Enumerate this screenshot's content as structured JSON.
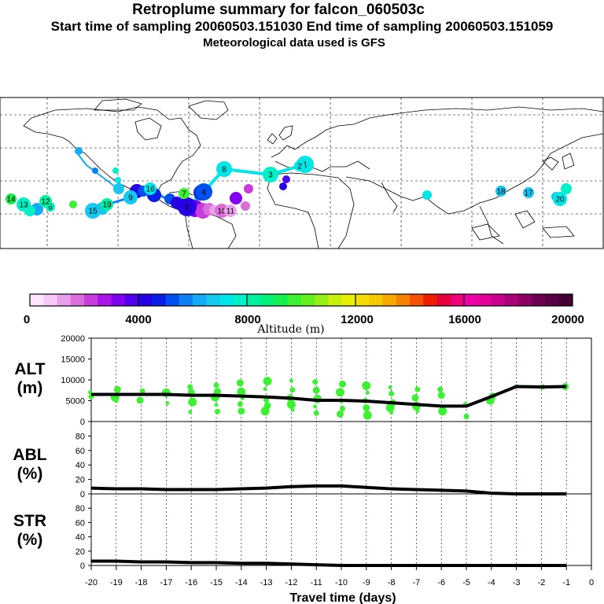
{
  "header": {
    "title": "Retroplume summary for falcon_060503c",
    "sampling": "Start time of sampling 20060503.151030     End time of sampling 20060503.151059",
    "met": "Meteorological data used is GFS"
  },
  "colorbar": {
    "label": "Altitude (m)",
    "ticks": [
      "0",
      "4000",
      "8000",
      "12000",
      "16000",
      "20000"
    ],
    "colors": [
      "#ffe6ff",
      "#f5c8f5",
      "#eaa0ea",
      "#dc6edc",
      "#c83cdc",
      "#aa14e6",
      "#8200f0",
      "#5000f0",
      "#2800e6",
      "#0a1ee6",
      "#0050f0",
      "#0a82f5",
      "#14aaf5",
      "#14c8f0",
      "#00e6e6",
      "#00f0c8",
      "#00f0a0",
      "#00f078",
      "#14f050",
      "#3cf032",
      "#64f01e",
      "#96f014",
      "#c8f00a",
      "#e6f000",
      "#f5dc00",
      "#f5c800",
      "#f5aa00",
      "#f58200",
      "#f55000",
      "#f01e00",
      "#e6003c",
      "#f0007a",
      "#f000aa",
      "#e6009b",
      "#c8008c",
      "#aa0078",
      "#8c0064",
      "#6e0050",
      "#5a0046",
      "#460032"
    ]
  },
  "map": {
    "labels": [
      {
        "t": "1",
        "c": "#00e6e6"
      },
      {
        "t": "2",
        "c": "#00e6e6"
      },
      {
        "t": "3",
        "c": "#00f0c8"
      },
      {
        "t": "4",
        "c": "#0050f0"
      },
      {
        "t": "5",
        "c": "#2800e6"
      },
      {
        "t": "6",
        "c": "#00f0c8"
      },
      {
        "t": "7",
        "c": "#3cf032"
      },
      {
        "t": "8",
        "c": "#00e6e6"
      },
      {
        "t": "9",
        "c": "#14c8f0"
      },
      {
        "t": "10",
        "c": "#dc6edc"
      },
      {
        "t": "11",
        "c": "#eaa0ea"
      },
      {
        "t": "12",
        "c": "#00f0a0"
      },
      {
        "t": "13",
        "c": "#00f0c8"
      },
      {
        "t": "14",
        "c": "#14f050"
      },
      {
        "t": "15",
        "c": "#14c8f0"
      },
      {
        "t": "16",
        "c": "#00e6e6"
      },
      {
        "t": "17",
        "c": "#14c8f0"
      },
      {
        "t": "18",
        "c": "#14c8f0"
      },
      {
        "t": "19",
        "c": "#00f0a0"
      },
      {
        "t": "20",
        "c": "#00e6e6"
      }
    ]
  },
  "panels": {
    "alt": "ALT",
    "alt_unit": "(m)",
    "abl": "ABL",
    "abl_unit": "(%)",
    "str": "STR",
    "str_unit": "(%)"
  },
  "xaxis_label": "Travel time (days)",
  "chart_data": [
    {
      "type": "line",
      "title": "ALT",
      "xlabel": "Travel time (days)",
      "ylabel": "(m)",
      "xlim": [
        -20,
        0
      ],
      "ylim": [
        0,
        20000
      ],
      "x_ticks": [
        "-20",
        "-19",
        "-18",
        "-17",
        "-16",
        "-15",
        "-14",
        "-13",
        "-12",
        "-11",
        "-10",
        "-9",
        "-8",
        "-7",
        "-6",
        "-5",
        "-4",
        "-3",
        "-2",
        "-1",
        "0"
      ],
      "y_ticks": [
        "20000",
        "15000",
        "10000",
        "5000",
        "0"
      ],
      "x": [
        -20,
        -19,
        -18,
        -17,
        -16,
        -15,
        -14,
        -13,
        -12,
        -11,
        -10,
        -9,
        -8,
        -7,
        -6,
        -5,
        -4,
        -3,
        -2,
        -1
      ],
      "values": [
        6500,
        6500,
        6500,
        6500,
        6300,
        6300,
        6100,
        5900,
        5600,
        5100,
        5100,
        4900,
        4500,
        4100,
        3700,
        3700,
        6000,
        8400,
        8300,
        8400
      ],
      "scatter": [
        {
          "x": -20,
          "y": 7000
        },
        {
          "x": -20,
          "y": 6000
        },
        {
          "x": -19,
          "y": 7700
        },
        {
          "x": -19,
          "y": 5800
        },
        {
          "x": -19,
          "y": 4900
        },
        {
          "x": -18,
          "y": 7300
        },
        {
          "x": -18,
          "y": 5100
        },
        {
          "x": -17,
          "y": 6900
        },
        {
          "x": -17,
          "y": 4400
        },
        {
          "x": -16,
          "y": 8300
        },
        {
          "x": -16,
          "y": 7000
        },
        {
          "x": -16,
          "y": 4700
        },
        {
          "x": -16,
          "y": 2300
        },
        {
          "x": -15,
          "y": 8700
        },
        {
          "x": -15,
          "y": 7200
        },
        {
          "x": -15,
          "y": 5900
        },
        {
          "x": -15,
          "y": 4000
        },
        {
          "x": -15,
          "y": 2400
        },
        {
          "x": -14,
          "y": 9300
        },
        {
          "x": -14,
          "y": 7100
        },
        {
          "x": -14,
          "y": 5600
        },
        {
          "x": -14,
          "y": 4200
        },
        {
          "x": -14,
          "y": 2500
        },
        {
          "x": -13,
          "y": 9700
        },
        {
          "x": -13,
          "y": 7800
        },
        {
          "x": -13,
          "y": 5200
        },
        {
          "x": -13,
          "y": 3800
        },
        {
          "x": -13,
          "y": 2500
        },
        {
          "x": -12,
          "y": 9800
        },
        {
          "x": -12,
          "y": 7600
        },
        {
          "x": -12,
          "y": 5700
        },
        {
          "x": -12,
          "y": 4100
        },
        {
          "x": -12,
          "y": 2800
        },
        {
          "x": -11,
          "y": 9500
        },
        {
          "x": -11,
          "y": 7500
        },
        {
          "x": -11,
          "y": 5400
        },
        {
          "x": -11,
          "y": 3600
        },
        {
          "x": -11,
          "y": 2000
        },
        {
          "x": -10,
          "y": 9000
        },
        {
          "x": -10,
          "y": 7000
        },
        {
          "x": -10,
          "y": 4800
        },
        {
          "x": -10,
          "y": 3100
        },
        {
          "x": -10,
          "y": 1800
        },
        {
          "x": -9,
          "y": 8600
        },
        {
          "x": -9,
          "y": 6900
        },
        {
          "x": -9,
          "y": 5000
        },
        {
          "x": -9,
          "y": 3300
        },
        {
          "x": -9,
          "y": 1500
        },
        {
          "x": -8,
          "y": 8200
        },
        {
          "x": -8,
          "y": 6700
        },
        {
          "x": -8,
          "y": 4500
        },
        {
          "x": -8,
          "y": 3300
        },
        {
          "x": -8,
          "y": 2100
        },
        {
          "x": -7,
          "y": 7700
        },
        {
          "x": -7,
          "y": 5700
        },
        {
          "x": -7,
          "y": 3700
        },
        {
          "x": -7,
          "y": 2500
        },
        {
          "x": -6,
          "y": 7700
        },
        {
          "x": -6,
          "y": 6300
        },
        {
          "x": -6,
          "y": 2500
        },
        {
          "x": -5,
          "y": 4200
        },
        {
          "x": -5,
          "y": 1200
        },
        {
          "x": -4,
          "y": 6100
        },
        {
          "x": -4,
          "y": 5100
        },
        {
          "x": -3,
          "y": 8500
        },
        {
          "x": -2,
          "y": 8300
        },
        {
          "x": -1,
          "y": 8400
        }
      ]
    },
    {
      "type": "line",
      "title": "ABL",
      "ylabel": "(%)",
      "xlim": [
        -20,
        0
      ],
      "ylim": [
        0,
        100
      ],
      "y_ticks": [
        "80",
        "60",
        "40",
        "20",
        "0"
      ],
      "x": [
        -20,
        -19,
        -18,
        -17,
        -16,
        -15,
        -14,
        -13,
        -12,
        -11,
        -10,
        -9,
        -8,
        -7,
        -6,
        -5,
        -4,
        -3,
        -2,
        -1
      ],
      "values": [
        8,
        7,
        7,
        6,
        6,
        6,
        7,
        8,
        10,
        11,
        11,
        9,
        7,
        6,
        5,
        4,
        1,
        0,
        0,
        0
      ]
    },
    {
      "type": "line",
      "title": "STR",
      "ylabel": "(%)",
      "xlim": [
        -20,
        0
      ],
      "ylim": [
        0,
        100
      ],
      "y_ticks": [
        "80",
        "60",
        "40",
        "20",
        "0"
      ],
      "x": [
        -20,
        -19,
        -18,
        -17,
        -16,
        -15,
        -14,
        -13,
        -12,
        -11,
        -10,
        -9,
        -8,
        -7,
        -6,
        -5,
        -4,
        -3,
        -2,
        -1
      ],
      "values": [
        6,
        6,
        5,
        5,
        4,
        4,
        3,
        3,
        2,
        1,
        0,
        0,
        0,
        0,
        0,
        0,
        0,
        0,
        0,
        0
      ]
    }
  ]
}
